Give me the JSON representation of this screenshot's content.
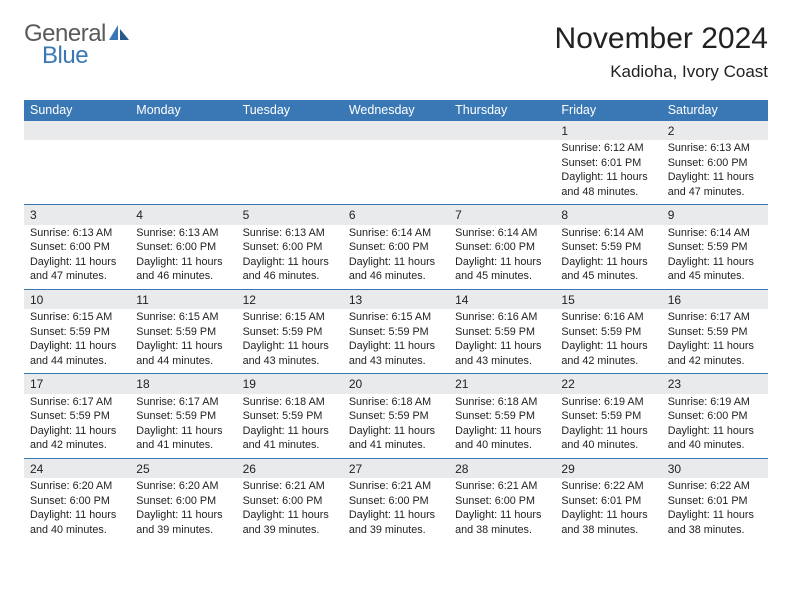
{
  "logo": {
    "text1": "General",
    "text2": "Blue"
  },
  "title": "November 2024",
  "location": "Kadioha, Ivory Coast",
  "colors": {
    "header_bg": "#3a78b5",
    "header_fg": "#ffffff",
    "daynum_bg": "#e8eaec",
    "border": "#3a78b5",
    "text": "#222222",
    "logo_gray": "#5a5a5a",
    "logo_blue": "#3a78b5"
  },
  "dayHeaders": [
    "Sunday",
    "Monday",
    "Tuesday",
    "Wednesday",
    "Thursday",
    "Friday",
    "Saturday"
  ],
  "weeks": [
    [
      null,
      null,
      null,
      null,
      null,
      {
        "n": "1",
        "sr": "6:12 AM",
        "ss": "6:01 PM",
        "dl": "11 hours and 48 minutes."
      },
      {
        "n": "2",
        "sr": "6:13 AM",
        "ss": "6:00 PM",
        "dl": "11 hours and 47 minutes."
      }
    ],
    [
      {
        "n": "3",
        "sr": "6:13 AM",
        "ss": "6:00 PM",
        "dl": "11 hours and 47 minutes."
      },
      {
        "n": "4",
        "sr": "6:13 AM",
        "ss": "6:00 PM",
        "dl": "11 hours and 46 minutes."
      },
      {
        "n": "5",
        "sr": "6:13 AM",
        "ss": "6:00 PM",
        "dl": "11 hours and 46 minutes."
      },
      {
        "n": "6",
        "sr": "6:14 AM",
        "ss": "6:00 PM",
        "dl": "11 hours and 46 minutes."
      },
      {
        "n": "7",
        "sr": "6:14 AM",
        "ss": "6:00 PM",
        "dl": "11 hours and 45 minutes."
      },
      {
        "n": "8",
        "sr": "6:14 AM",
        "ss": "5:59 PM",
        "dl": "11 hours and 45 minutes."
      },
      {
        "n": "9",
        "sr": "6:14 AM",
        "ss": "5:59 PM",
        "dl": "11 hours and 45 minutes."
      }
    ],
    [
      {
        "n": "10",
        "sr": "6:15 AM",
        "ss": "5:59 PM",
        "dl": "11 hours and 44 minutes."
      },
      {
        "n": "11",
        "sr": "6:15 AM",
        "ss": "5:59 PM",
        "dl": "11 hours and 44 minutes."
      },
      {
        "n": "12",
        "sr": "6:15 AM",
        "ss": "5:59 PM",
        "dl": "11 hours and 43 minutes."
      },
      {
        "n": "13",
        "sr": "6:15 AM",
        "ss": "5:59 PM",
        "dl": "11 hours and 43 minutes."
      },
      {
        "n": "14",
        "sr": "6:16 AM",
        "ss": "5:59 PM",
        "dl": "11 hours and 43 minutes."
      },
      {
        "n": "15",
        "sr": "6:16 AM",
        "ss": "5:59 PM",
        "dl": "11 hours and 42 minutes."
      },
      {
        "n": "16",
        "sr": "6:17 AM",
        "ss": "5:59 PM",
        "dl": "11 hours and 42 minutes."
      }
    ],
    [
      {
        "n": "17",
        "sr": "6:17 AM",
        "ss": "5:59 PM",
        "dl": "11 hours and 42 minutes."
      },
      {
        "n": "18",
        "sr": "6:17 AM",
        "ss": "5:59 PM",
        "dl": "11 hours and 41 minutes."
      },
      {
        "n": "19",
        "sr": "6:18 AM",
        "ss": "5:59 PM",
        "dl": "11 hours and 41 minutes."
      },
      {
        "n": "20",
        "sr": "6:18 AM",
        "ss": "5:59 PM",
        "dl": "11 hours and 41 minutes."
      },
      {
        "n": "21",
        "sr": "6:18 AM",
        "ss": "5:59 PM",
        "dl": "11 hours and 40 minutes."
      },
      {
        "n": "22",
        "sr": "6:19 AM",
        "ss": "5:59 PM",
        "dl": "11 hours and 40 minutes."
      },
      {
        "n": "23",
        "sr": "6:19 AM",
        "ss": "6:00 PM",
        "dl": "11 hours and 40 minutes."
      }
    ],
    [
      {
        "n": "24",
        "sr": "6:20 AM",
        "ss": "6:00 PM",
        "dl": "11 hours and 40 minutes."
      },
      {
        "n": "25",
        "sr": "6:20 AM",
        "ss": "6:00 PM",
        "dl": "11 hours and 39 minutes."
      },
      {
        "n": "26",
        "sr": "6:21 AM",
        "ss": "6:00 PM",
        "dl": "11 hours and 39 minutes."
      },
      {
        "n": "27",
        "sr": "6:21 AM",
        "ss": "6:00 PM",
        "dl": "11 hours and 39 minutes."
      },
      {
        "n": "28",
        "sr": "6:21 AM",
        "ss": "6:00 PM",
        "dl": "11 hours and 38 minutes."
      },
      {
        "n": "29",
        "sr": "6:22 AM",
        "ss": "6:01 PM",
        "dl": "11 hours and 38 minutes."
      },
      {
        "n": "30",
        "sr": "6:22 AM",
        "ss": "6:01 PM",
        "dl": "11 hours and 38 minutes."
      }
    ]
  ],
  "labels": {
    "sunrise": "Sunrise:",
    "sunset": "Sunset:",
    "daylight": "Daylight:"
  }
}
